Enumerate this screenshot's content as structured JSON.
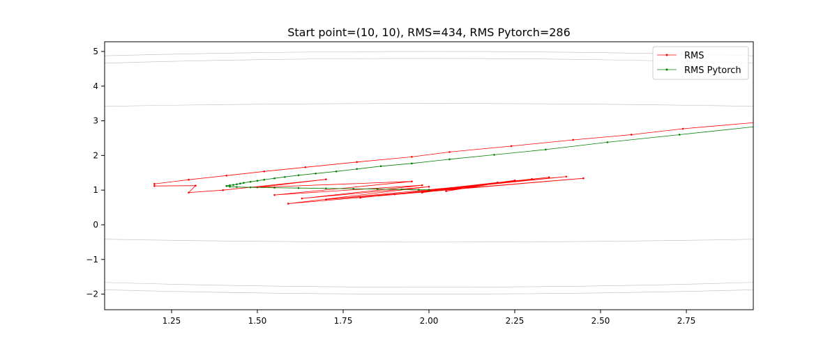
{
  "chart_data": {
    "type": "line",
    "title": "Start point=(10, 10), RMS=434, RMS Pytorch=286",
    "xlabel": "",
    "ylabel": "",
    "xlim": [
      1.055,
      2.945
    ],
    "ylim": [
      -2.45,
      5.28
    ],
    "xticks": [
      1.25,
      1.5,
      1.75,
      2.0,
      2.25,
      2.5,
      2.75
    ],
    "xtick_labels": [
      "1.25",
      "1.50",
      "1.75",
      "2.00",
      "2.25",
      "2.50",
      "2.75"
    ],
    "yticks": [
      -2,
      -1,
      0,
      1,
      2,
      3,
      4,
      5
    ],
    "ytick_labels": [
      "−2",
      "−1",
      "0",
      "1",
      "2",
      "3",
      "4",
      "5"
    ],
    "grid": false,
    "legend_position": "top-right",
    "contour_color": "#bbbbbb",
    "series": [
      {
        "name": "RMS",
        "color": "#ff0000",
        "x": [
          2.95,
          2.74,
          2.59,
          2.42,
          2.24,
          2.06,
          1.95,
          1.79,
          1.64,
          1.52,
          1.41,
          1.3,
          1.2,
          1.2,
          1.32,
          1.3,
          1.4,
          1.7,
          1.5,
          1.95,
          1.55,
          1.98,
          1.63,
          2.0,
          1.59,
          2.45,
          1.7,
          2.4,
          1.8,
          2.35,
          1.9,
          2.3,
          1.98,
          2.25,
          2.05,
          2.2,
          2.0
        ],
        "y": [
          2.95,
          2.77,
          2.6,
          2.45,
          2.27,
          2.1,
          1.96,
          1.81,
          1.66,
          1.54,
          1.42,
          1.3,
          1.18,
          1.12,
          1.13,
          0.93,
          1.0,
          1.31,
          1.08,
          1.25,
          0.86,
          1.14,
          0.76,
          1.1,
          0.61,
          1.34,
          0.73,
          1.39,
          0.78,
          1.37,
          0.88,
          1.32,
          0.93,
          1.28,
          0.97,
          1.22,
          1.0
        ]
      },
      {
        "name": "RMS Pytorch",
        "color": "#008000",
        "x": [
          2.95,
          2.73,
          2.52,
          2.34,
          2.19,
          2.06,
          1.95,
          1.86,
          1.79,
          1.73,
          1.67,
          1.62,
          1.58,
          1.55,
          1.52,
          1.5,
          1.48,
          1.46,
          1.45,
          1.44,
          1.43,
          1.42,
          1.41,
          1.42,
          1.44,
          1.48,
          1.55,
          1.62,
          1.7,
          1.78,
          1.85,
          1.92,
          1.97,
          2.0,
          2.0
        ],
        "y": [
          2.83,
          2.6,
          2.38,
          2.17,
          2.02,
          1.89,
          1.77,
          1.69,
          1.61,
          1.54,
          1.48,
          1.43,
          1.38,
          1.34,
          1.3,
          1.27,
          1.24,
          1.21,
          1.19,
          1.17,
          1.15,
          1.14,
          1.12,
          1.1,
          1.09,
          1.08,
          1.07,
          1.06,
          1.05,
          1.04,
          1.03,
          1.02,
          1.01,
          1.01,
          1.0
        ]
      }
    ]
  }
}
